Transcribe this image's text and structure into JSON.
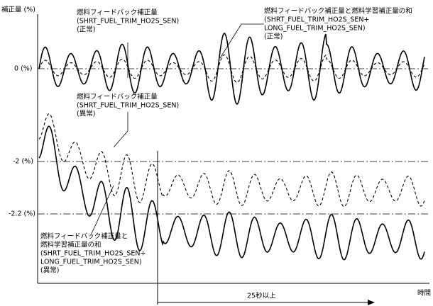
{
  "axis": {
    "y_label": "補正量 (%)",
    "x_label": "時間",
    "levels": [
      "0 (%)",
      "-2 (%)",
      "-2.2 (%)"
    ],
    "duration": "25秒以上"
  },
  "annotations": [
    {
      "lines": [
        "燃料フィードバック補正量",
        "(SHRT_FUEL_TRIM_HO2S_SEN)",
        "(正常)"
      ]
    },
    {
      "lines": [
        "燃料フィードバック補正量と燃料学習補正量の和",
        "(SHRT_FUEL_TRIM_HO2S_SEN+",
        "LONG_FUEL_TRIM_HO2S_SEN)",
        "(正常)"
      ]
    },
    {
      "lines": [
        "燃料フィードバック補正量",
        "(SHRT_FUEL_TRIM_HO2S_SEN)",
        "(異常)"
      ]
    },
    {
      "lines": [
        "燃料フィードバック補正量と",
        "燃料学習補正量の和",
        "(SHRT_FUEL_TRIM_HO2S_SEN+",
        "LONG_FUEL_TRIM_HO2S_SEN)",
        "(異常)"
      ]
    }
  ]
}
